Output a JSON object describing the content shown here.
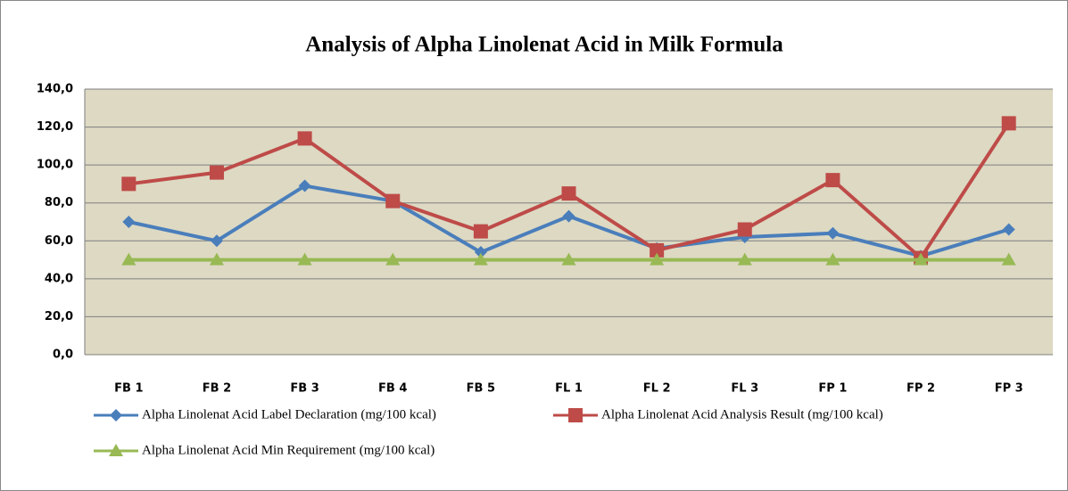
{
  "chart_data": {
    "type": "line",
    "title": "Analysis of Alpha Linolenat Acid in Milk Formula",
    "categories": [
      "FB 1",
      "FB 2",
      "FB 3",
      "FB 4",
      "FB 5",
      "FL 1",
      "FL 2",
      "FL 3",
      "FP 1",
      "FP 2",
      "FP 3"
    ],
    "series": [
      {
        "name": "Alpha Linolenat Acid Label Declaration (mg/100 kcal)",
        "color": "#4a7ebb",
        "marker": "diamond",
        "values": [
          70,
          60,
          89,
          81,
          54,
          73,
          56,
          62,
          64,
          52,
          66
        ]
      },
      {
        "name": "Alpha Linolenat Acid Analysis Result (mg/100 kcal)",
        "color": "#be4b48",
        "marker": "square",
        "values": [
          90,
          96,
          114,
          81,
          65,
          85,
          55,
          66,
          92,
          51,
          122
        ]
      },
      {
        "name": "Alpha Linolenat Acid Min Requirement (mg/100 kcal)",
        "color": "#98b954",
        "marker": "triangle",
        "values": [
          50,
          50,
          50,
          50,
          50,
          50,
          50,
          50,
          50,
          50,
          50
        ]
      }
    ],
    "ylim": [
      0,
      140
    ],
    "yticks": [
      {
        "value": 0,
        "label": "0,0"
      },
      {
        "value": 20,
        "label": "20,0"
      },
      {
        "value": 40,
        "label": "40,0"
      },
      {
        "value": 60,
        "label": "60,0"
      },
      {
        "value": 80,
        "label": "80,0"
      },
      {
        "value": 100,
        "label": "100,0"
      },
      {
        "value": 120,
        "label": "120,0"
      },
      {
        "value": 140,
        "label": "140,0"
      }
    ],
    "grid": true
  }
}
